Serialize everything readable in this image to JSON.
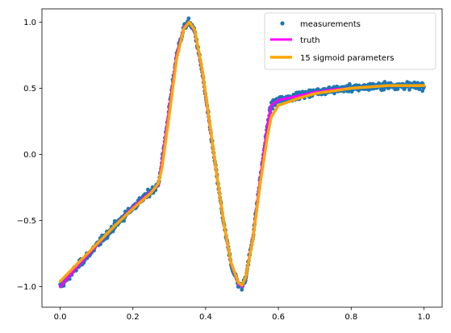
{
  "chart_data": {
    "type": "scatter",
    "title": "",
    "xlabel": "",
    "ylabel": "",
    "xlim": [
      -0.05,
      1.05
    ],
    "ylim": [
      -1.155,
      1.1
    ],
    "xticks": [
      0.0,
      0.2,
      0.4,
      0.6,
      0.8,
      1.0
    ],
    "xtick_labels": [
      "0.0",
      "0.2",
      "0.4",
      "0.6",
      "0.8",
      "1.0"
    ],
    "yticks": [
      -1.0,
      -0.5,
      0.0,
      0.5,
      1.0
    ],
    "ytick_labels": [
      "−1.0",
      "−0.5",
      "0.0",
      "0.5",
      "1.0"
    ],
    "grid": false,
    "legend_position": "top-right",
    "colors": {
      "measurements": "#1f77b4",
      "truth": "#ff00ff",
      "fit": "#ffa500"
    },
    "series": [
      {
        "name": "measurements",
        "kind": "scatter",
        "description_points": 1000,
        "x": [
          0.0,
          0.05,
          0.1,
          0.15,
          0.2,
          0.25,
          0.27,
          0.28,
          0.3,
          0.32,
          0.34,
          0.355,
          0.37,
          0.39,
          0.41,
          0.43,
          0.45,
          0.47,
          0.49,
          0.5,
          0.51,
          0.53,
          0.55,
          0.57,
          0.58,
          0.6,
          0.65,
          0.7,
          0.75,
          0.8,
          0.85,
          0.9,
          0.95,
          1.0
        ],
        "y": [
          -1.0,
          -0.84,
          -0.69,
          -0.54,
          -0.4,
          -0.28,
          -0.23,
          -0.05,
          0.35,
          0.75,
          0.96,
          1.0,
          0.93,
          0.63,
          0.24,
          -0.15,
          -0.53,
          -0.83,
          -0.98,
          -1.0,
          -0.93,
          -0.62,
          -0.18,
          0.22,
          0.37,
          0.41,
          0.44,
          0.47,
          0.49,
          0.5,
          0.51,
          0.52,
          0.52,
          0.52
        ]
      },
      {
        "name": "truth",
        "kind": "line",
        "x": [
          0.0,
          0.05,
          0.1,
          0.15,
          0.2,
          0.25,
          0.27,
          0.28,
          0.3,
          0.32,
          0.34,
          0.355,
          0.37,
          0.39,
          0.41,
          0.43,
          0.45,
          0.47,
          0.49,
          0.5,
          0.51,
          0.53,
          0.55,
          0.57,
          0.58,
          0.6,
          0.65,
          0.7,
          0.75,
          0.8,
          0.85,
          0.9,
          0.95,
          1.0
        ],
        "y": [
          -1.0,
          -0.84,
          -0.69,
          -0.54,
          -0.4,
          -0.28,
          -0.23,
          -0.05,
          0.35,
          0.75,
          0.96,
          1.0,
          0.93,
          0.63,
          0.24,
          -0.15,
          -0.53,
          -0.83,
          -0.98,
          -1.0,
          -0.93,
          -0.62,
          -0.18,
          0.22,
          0.37,
          0.41,
          0.44,
          0.47,
          0.49,
          0.5,
          0.51,
          0.52,
          0.52,
          0.52
        ]
      },
      {
        "name": "15 sigmoid parameters",
        "kind": "line",
        "x": [
          0.0,
          0.05,
          0.1,
          0.15,
          0.2,
          0.25,
          0.27,
          0.28,
          0.3,
          0.32,
          0.34,
          0.355,
          0.37,
          0.39,
          0.41,
          0.43,
          0.45,
          0.47,
          0.49,
          0.5,
          0.51,
          0.53,
          0.55,
          0.57,
          0.58,
          0.6,
          0.65,
          0.7,
          0.75,
          0.8,
          0.85,
          0.9,
          0.95,
          1.0
        ],
        "y": [
          -0.96,
          -0.82,
          -0.68,
          -0.54,
          -0.41,
          -0.29,
          -0.22,
          -0.1,
          0.3,
          0.72,
          0.95,
          1.0,
          0.94,
          0.65,
          0.26,
          -0.14,
          -0.52,
          -0.82,
          -0.97,
          -0.99,
          -0.93,
          -0.64,
          -0.22,
          0.14,
          0.28,
          0.37,
          0.42,
          0.46,
          0.48,
          0.5,
          0.51,
          0.52,
          0.52,
          0.52
        ]
      }
    ]
  }
}
